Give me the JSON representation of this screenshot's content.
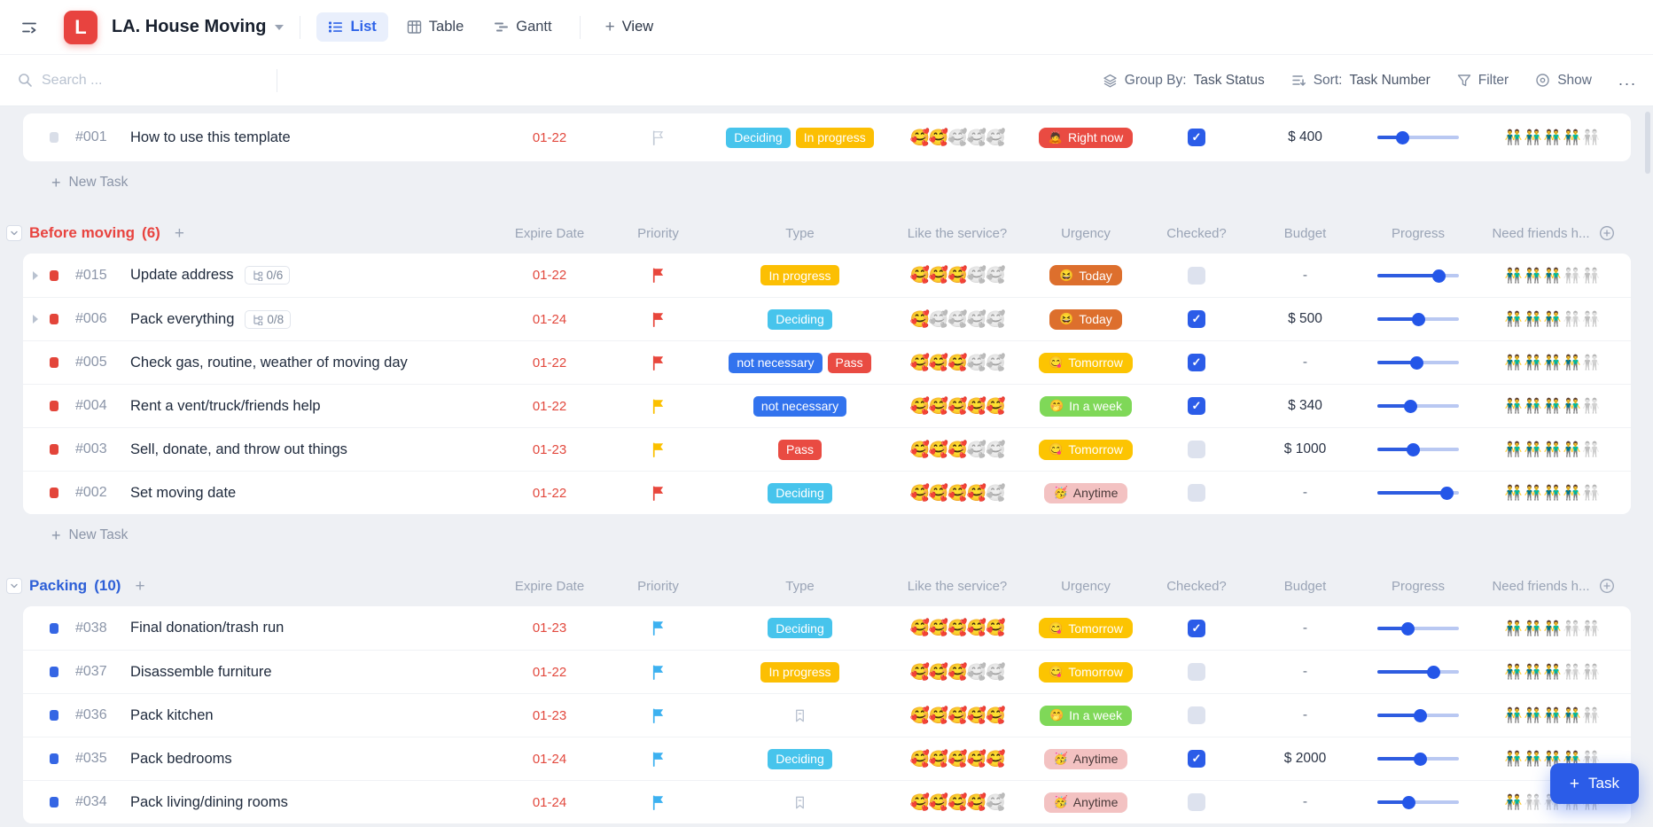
{
  "header": {
    "logo_letter": "L",
    "title": "LA. House Moving",
    "tabs": [
      {
        "label": "List",
        "active": true
      },
      {
        "label": "Table",
        "active": false
      },
      {
        "label": "Gantt",
        "active": false
      }
    ],
    "view_label": "View"
  },
  "toolbar": {
    "search_placeholder": "Search ...",
    "group_by_label": "Group By:",
    "group_by_value": "Task Status",
    "sort_label": "Sort:",
    "sort_value": "Task Number",
    "filter_label": "Filter",
    "show_label": "Show",
    "more_label": "...",
    "new_task_label": "New Task",
    "task_button_label": "Task"
  },
  "columns": [
    "Expire Date",
    "Priority",
    "Type",
    "Like the service?",
    "Urgency",
    "Checked?",
    "Budget",
    "Progress",
    "Need friends h..."
  ],
  "icons": {
    "like_emoji": "🥰",
    "friends_emoji": "👬"
  },
  "colors": {
    "accent_blue": "#2b5ce8",
    "brand_red": "#e8433f",
    "date_red": "#e2483d"
  },
  "type_styles": {
    "deciding": {
      "label": "Deciding",
      "bg": "#47c4ec",
      "fg": "#ffffff"
    },
    "in_progress": {
      "label": "In progress",
      "bg": "#fcbf03",
      "fg": "#ffffff"
    },
    "not_necessary": {
      "label": "not necessary",
      "bg": "#3273ee",
      "fg": "#ffffff"
    },
    "pass": {
      "label": "Pass",
      "bg": "#e94b42",
      "fg": "#ffffff"
    }
  },
  "urgency_styles": {
    "right_now": {
      "label": "Right now",
      "emoji": "🙇",
      "bg": "#e94b42",
      "fg": "#ffffff"
    },
    "today": {
      "label": "Today",
      "emoji": "😆",
      "bg": "#dd6f2d",
      "fg": "#ffffff"
    },
    "tomorrow": {
      "label": "Tomorrow",
      "emoji": "😋",
      "bg": "#fcc402",
      "fg": "#ffffff"
    },
    "in_a_week": {
      "label": "In a week",
      "emoji": "🤭",
      "bg": "#7fd858",
      "fg": "#ffffff"
    },
    "anytime": {
      "label": "Anytime",
      "emoji": "🥳",
      "bg": "#f3c2c2",
      "fg": "#4a3a3a"
    }
  },
  "groups": [
    {
      "title": null,
      "count": null,
      "color": null,
      "show_header": false,
      "new_task": true,
      "rows": [
        {
          "id": "#001",
          "title": "How to use this template",
          "subtasks": null,
          "expand": false,
          "dot": "gray",
          "date": "01-22",
          "flag": "gray",
          "types": [
            "deciding",
            "in_progress"
          ],
          "like": 2,
          "urgency": "right_now",
          "checked": true,
          "budget": "$ 400",
          "progress": 0.3,
          "friends": 4
        }
      ]
    },
    {
      "title": "Before moving",
      "count": "(6)",
      "color": "#e8433f",
      "show_header": true,
      "new_task": true,
      "rows": [
        {
          "id": "#015",
          "title": "Update address",
          "subtasks": "0/6",
          "expand": true,
          "dot": "red",
          "date": "01-22",
          "flag": "red",
          "types": [
            "in_progress"
          ],
          "like": 3,
          "urgency": "today",
          "checked": false,
          "budget": "-",
          "progress": 0.75,
          "friends": 3
        },
        {
          "id": "#006",
          "title": "Pack everything",
          "subtasks": "0/8",
          "expand": true,
          "dot": "red",
          "date": "01-24",
          "flag": "red",
          "types": [
            "deciding"
          ],
          "like": 1,
          "urgency": "today",
          "checked": true,
          "budget": "$ 500",
          "progress": 0.5,
          "friends": 3
        },
        {
          "id": "#005",
          "title": "Check gas, routine, weather of moving day",
          "subtasks": null,
          "expand": false,
          "dot": "red",
          "date": "01-22",
          "flag": "red",
          "types": [
            "not_necessary",
            "pass"
          ],
          "like": 3,
          "urgency": "tomorrow",
          "checked": true,
          "budget": "-",
          "progress": 0.48,
          "friends": 4
        },
        {
          "id": "#004",
          "title": "Rent a vent/truck/friends help",
          "subtasks": null,
          "expand": false,
          "dot": "red",
          "date": "01-22",
          "flag": "yellow",
          "types": [
            "not_necessary"
          ],
          "like": 5,
          "urgency": "in_a_week",
          "checked": true,
          "budget": "$ 340",
          "progress": 0.4,
          "friends": 4
        },
        {
          "id": "#003",
          "title": "Sell, donate, and throw out things",
          "subtasks": null,
          "expand": false,
          "dot": "red",
          "date": "01-23",
          "flag": "yellow",
          "types": [
            "pass"
          ],
          "like": 3,
          "urgency": "tomorrow",
          "checked": false,
          "budget": "$ 1000",
          "progress": 0.43,
          "friends": 4
        },
        {
          "id": "#002",
          "title": "Set moving date",
          "subtasks": null,
          "expand": false,
          "dot": "red",
          "date": "01-22",
          "flag": "red",
          "types": [
            "deciding"
          ],
          "like": 4,
          "urgency": "anytime",
          "checked": false,
          "budget": "-",
          "progress": 0.85,
          "friends": 4
        }
      ]
    },
    {
      "title": "Packing",
      "count": "(10)",
      "color": "#2d5fd7",
      "show_header": true,
      "new_task": false,
      "rows": [
        {
          "id": "#038",
          "title": "Final donation/trash run",
          "subtasks": null,
          "expand": false,
          "dot": "blue",
          "date": "01-23",
          "flag": "blue",
          "types": [
            "deciding"
          ],
          "like": 5,
          "urgency": "tomorrow",
          "checked": true,
          "budget": "-",
          "progress": 0.37,
          "friends": 3
        },
        {
          "id": "#037",
          "title": "Disassemble furniture",
          "subtasks": null,
          "expand": false,
          "dot": "blue",
          "date": "01-22",
          "flag": "blue",
          "types": [
            "in_progress"
          ],
          "like": 3,
          "urgency": "tomorrow",
          "checked": false,
          "budget": "-",
          "progress": 0.68,
          "friends": 3
        },
        {
          "id": "#036",
          "title": "Pack kitchen",
          "subtasks": null,
          "expand": false,
          "dot": "blue",
          "date": "01-23",
          "flag": "blue",
          "types": [],
          "like": 5,
          "urgency": "in_a_week",
          "checked": false,
          "budget": "-",
          "progress": 0.52,
          "friends": 4
        },
        {
          "id": "#035",
          "title": "Pack bedrooms",
          "subtasks": null,
          "expand": false,
          "dot": "blue",
          "date": "01-24",
          "flag": "blue",
          "types": [
            "deciding"
          ],
          "like": 5,
          "urgency": "anytime",
          "checked": true,
          "budget": "$ 2000",
          "progress": 0.52,
          "friends": 4
        },
        {
          "id": "#034",
          "title": "Pack living/dining rooms",
          "subtasks": null,
          "expand": false,
          "dot": "blue",
          "date": "01-24",
          "flag": "blue",
          "types": [],
          "like": 4,
          "urgency": "anytime",
          "checked": false,
          "budget": "-",
          "progress": 0.38,
          "friends": 1
        }
      ]
    }
  ]
}
